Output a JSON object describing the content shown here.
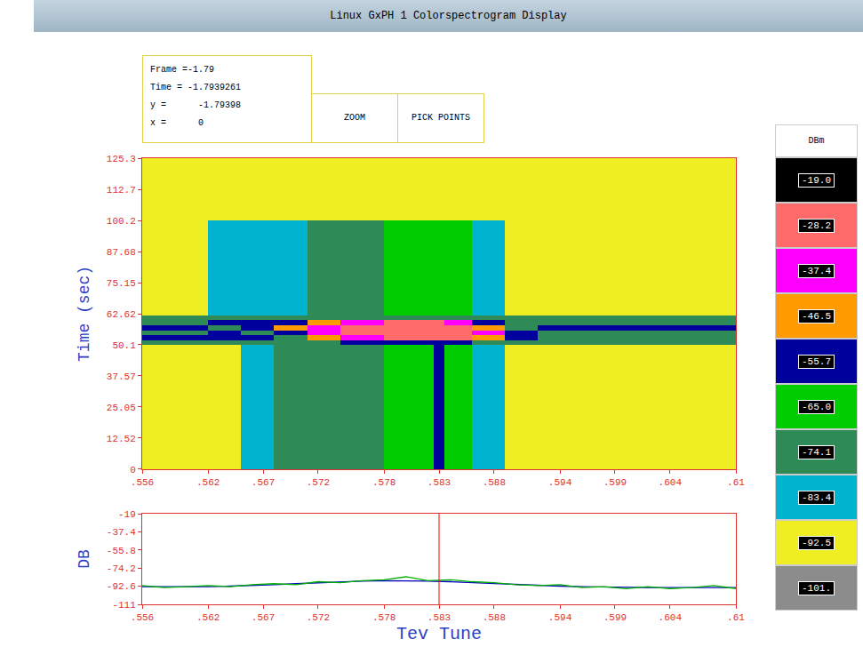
{
  "header": {
    "title": "Linux GxPH 1  Colorspectrogram Display"
  },
  "info_panel": {
    "lines": [
      "Frame =-1.79",
      "Time = -1.7939261",
      "y =      -1.79398",
      "x =      0"
    ],
    "buttons": [
      "ZOOM",
      "PICK POINTS"
    ]
  },
  "chart_data": [
    {
      "type": "heatmap",
      "y_label": "Time (sec)",
      "x_edges": [
        0.556,
        0.562,
        0.565,
        0.568,
        0.571,
        0.574,
        0.578,
        0.5825,
        0.5835,
        0.586,
        0.589,
        0.592,
        0.61
      ],
      "y_edges": [
        0,
        50,
        52,
        54,
        56,
        58,
        60,
        62,
        100.2,
        125.3
      ],
      "cells": [
        [
          -92.5,
          -92.5,
          -83.4,
          -74.1,
          -74.1,
          -74.1,
          -65.0,
          -55.7,
          -65.0,
          -83.4,
          -92.5,
          -92.5
        ],
        [
          -74.1,
          -74.1,
          -74.1,
          -74.1,
          -74.1,
          -55.7,
          -55.7,
          -55.7,
          -55.7,
          -74.1,
          -74.1,
          -74.1
        ],
        [
          -55.7,
          -55.7,
          -55.7,
          -74.1,
          -46.5,
          -37.4,
          -28.2,
          -28.2,
          -28.2,
          -46.5,
          -55.7,
          -74.1
        ],
        [
          -74.1,
          -55.7,
          -74.1,
          -55.7,
          -37.4,
          -28.2,
          -28.2,
          -28.2,
          -28.2,
          -37.4,
          -55.7,
          -74.1
        ],
        [
          -55.7,
          -74.1,
          -55.7,
          -46.5,
          -37.4,
          -28.2,
          -28.2,
          -28.2,
          -28.2,
          -46.5,
          -74.1,
          -55.7
        ],
        [
          -74.1,
          -55.7,
          -55.7,
          -55.7,
          -46.5,
          -37.4,
          -28.2,
          -28.2,
          -37.4,
          -55.7,
          -74.1,
          -74.1
        ],
        [
          -74.1,
          -74.1,
          -74.1,
          -74.1,
          -74.1,
          -74.1,
          -74.1,
          -74.1,
          -74.1,
          -74.1,
          -74.1,
          -74.1
        ],
        [
          -92.5,
          -83.4,
          -83.4,
          -83.4,
          -74.1,
          -74.1,
          -65.0,
          -65.0,
          -65.0,
          -83.4,
          -92.5,
          -92.5
        ],
        [
          -92.5,
          -92.5,
          -92.5,
          -92.5,
          -92.5,
          -92.5,
          -92.5,
          -92.5,
          -92.5,
          -92.5,
          -92.5,
          -92.5
        ]
      ],
      "xlim": [
        0.556,
        0.61
      ],
      "xticks": [
        {
          "value": 0.556,
          "label": ".556"
        },
        {
          "value": 0.562,
          "label": ".562"
        },
        {
          "value": 0.567,
          "label": ".567"
        },
        {
          "value": 0.572,
          "label": ".572"
        },
        {
          "value": 0.578,
          "label": ".578"
        },
        {
          "value": 0.583,
          "label": ".583"
        },
        {
          "value": 0.588,
          "label": ".588"
        },
        {
          "value": 0.594,
          "label": ".594"
        },
        {
          "value": 0.599,
          "label": ".599"
        },
        {
          "value": 0.604,
          "label": ".604"
        },
        {
          "value": 0.61,
          "label": ".61"
        }
      ],
      "ylim": [
        0,
        125.3
      ],
      "yticks": [
        0,
        12.52,
        25.05,
        37.57,
        50.1,
        62.62,
        75.15,
        87.68,
        100.2,
        112.7,
        125.3
      ],
      "color_scale": {
        "title": "DBm",
        "range": [
          -101,
          -19
        ],
        "ticks": [
          {
            "value": -19,
            "label": "-19.0",
            "color": "#000000"
          },
          {
            "value": -28.2,
            "label": "-28.2",
            "color": "#ff6a6a"
          },
          {
            "value": -37.4,
            "label": "-37.4",
            "color": "#ff00ff"
          },
          {
            "value": -46.5,
            "label": "-46.5",
            "color": "#ff9a00"
          },
          {
            "value": -55.7,
            "label": "-55.7",
            "color": "#00009c"
          },
          {
            "value": -65.0,
            "label": "-65.0",
            "color": "#00cc00"
          },
          {
            "value": -74.1,
            "label": "-74.1",
            "color": "#2e8b57"
          },
          {
            "value": -83.4,
            "label": "-83.4",
            "color": "#00b4d0"
          },
          {
            "value": -92.5,
            "label": "-92.5",
            "color": "#eeee22"
          },
          {
            "value": -101,
            "label": "-101.",
            "color": "#8c8c8c"
          }
        ]
      }
    },
    {
      "type": "line",
      "x_label": "Tev Tune",
      "y_label": "DB",
      "x": [
        0.556,
        0.558,
        0.56,
        0.562,
        0.564,
        0.566,
        0.568,
        0.57,
        0.572,
        0.574,
        0.576,
        0.578,
        0.58,
        0.582,
        0.584,
        0.586,
        0.588,
        0.59,
        0.592,
        0.594,
        0.596,
        0.598,
        0.6,
        0.602,
        0.604,
        0.606,
        0.608,
        0.61
      ],
      "series": [
        {
          "color": "#0000c0",
          "line_style": "solid",
          "values": [
            -93,
            -93,
            -93.5,
            -93,
            -92.5,
            -92,
            -91,
            -90,
            -89,
            -88,
            -87.5,
            -87,
            -87,
            -87.5,
            -88,
            -89,
            -90,
            -91,
            -92,
            -92.5,
            -93,
            -93.5,
            -94,
            -94,
            -94,
            -94,
            -94,
            -94
          ]
        },
        {
          "color": "#00b000",
          "line_style": "solid",
          "values": [
            -92,
            -94,
            -93,
            -92,
            -93,
            -91,
            -90,
            -91,
            -88,
            -89,
            -87,
            -86,
            -83,
            -87,
            -86,
            -88,
            -89,
            -91,
            -92,
            -91,
            -94,
            -93,
            -95,
            -93,
            -95,
            -94,
            -92,
            -95
          ]
        }
      ],
      "cursor": {
        "x": 0.583,
        "color": "#ff0000"
      },
      "xlim": [
        0.556,
        0.61
      ],
      "xticks": [
        {
          "value": 0.556,
          "label": ".556"
        },
        {
          "value": 0.562,
          "label": ".562"
        },
        {
          "value": 0.567,
          "label": ".567"
        },
        {
          "value": 0.572,
          "label": ".572"
        },
        {
          "value": 0.578,
          "label": ".578"
        },
        {
          "value": 0.583,
          "label": ".583"
        },
        {
          "value": 0.588,
          "label": ".588"
        },
        {
          "value": 0.594,
          "label": ".594"
        },
        {
          "value": 0.599,
          "label": ".599"
        },
        {
          "value": 0.604,
          "label": ".604"
        },
        {
          "value": 0.61,
          "label": ".61"
        }
      ],
      "ylim": [
        -111,
        -19
      ],
      "yticks": [
        -19,
        -37.4,
        -55.8,
        -74.2,
        -92.6,
        -111
      ]
    }
  ]
}
